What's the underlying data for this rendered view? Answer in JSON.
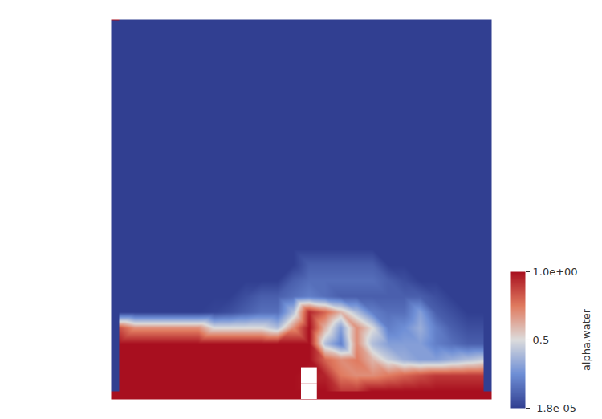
{
  "chart_data": {
    "type": "heatmap",
    "tick_labels": false,
    "cells": [
      [
        0,
        0,
        0,
        0,
        0,
        0,
        0,
        0,
        0,
        0,
        0,
        0,
        0,
        0,
        0,
        0,
        0,
        0,
        0,
        0,
        0,
        0,
        0,
        0
      ],
      [
        0,
        0,
        0,
        0,
        0,
        0,
        0,
        0,
        0,
        0,
        0,
        0,
        0,
        0,
        0,
        0,
        0,
        0,
        0,
        0,
        0,
        0,
        0,
        0
      ],
      [
        0,
        0,
        0,
        0,
        0,
        0,
        0,
        0,
        0,
        0,
        0,
        0,
        0,
        0,
        0,
        0,
        0,
        0,
        0,
        0,
        0,
        0,
        0,
        0
      ],
      [
        0,
        0,
        0,
        0,
        0,
        0,
        0,
        0,
        0,
        0,
        0,
        0,
        0,
        0,
        0,
        0,
        0,
        0,
        0,
        0,
        0,
        0,
        0,
        0
      ],
      [
        0,
        0,
        0,
        0,
        0,
        0,
        0,
        0,
        0,
        0,
        0,
        0,
        0,
        0,
        0,
        0,
        0,
        0,
        0,
        0,
        0,
        0,
        0,
        0
      ],
      [
        0,
        0,
        0,
        0,
        0,
        0,
        0,
        0,
        0,
        0,
        0,
        0,
        0,
        0,
        0,
        0,
        0,
        0,
        0,
        0,
        0,
        0,
        0,
        0
      ],
      [
        0,
        0,
        0,
        0,
        0,
        0,
        0,
        0,
        0,
        0,
        0,
        0,
        0,
        0,
        0,
        0,
        0,
        0,
        0,
        0,
        0,
        0,
        0,
        0
      ],
      [
        0,
        0,
        0,
        0,
        0,
        0,
        0,
        0,
        0,
        0,
        0,
        0,
        0,
        0,
        0,
        0,
        0,
        0,
        0,
        0,
        0,
        0,
        0,
        0
      ],
      [
        0,
        0,
        0,
        0,
        0,
        0,
        0,
        0,
        0,
        0,
        0,
        0,
        0,
        0,
        0,
        0,
        0,
        0,
        0,
        0,
        0,
        0,
        0,
        0
      ],
      [
        0,
        0,
        0,
        0,
        0,
        0,
        0,
        0,
        0,
        0,
        0,
        0,
        0,
        0,
        0,
        0,
        0,
        0,
        0,
        0,
        0,
        0,
        0,
        0
      ],
      [
        0,
        0,
        0,
        0,
        0,
        0,
        0,
        0,
        0,
        0,
        0,
        0,
        0,
        0,
        0,
        0,
        0,
        0,
        0,
        0,
        0,
        0,
        0,
        0
      ],
      [
        0,
        0,
        0,
        0,
        0,
        0,
        0,
        0,
        0,
        0,
        0,
        0,
        0,
        0,
        0,
        0,
        0,
        0,
        0,
        0,
        0,
        0,
        0,
        0
      ],
      [
        0,
        0,
        0,
        0,
        0,
        0,
        0,
        0,
        0,
        0,
        0,
        0,
        0,
        0,
        0,
        0,
        0,
        0,
        0,
        0,
        0,
        0,
        0,
        0
      ],
      [
        0,
        0,
        0,
        0,
        0,
        0,
        0,
        0,
        0,
        0,
        0,
        0,
        0,
        0,
        0,
        0,
        0,
        0,
        0,
        0,
        0,
        0,
        0,
        0
      ],
      [
        0,
        0,
        0,
        0,
        0,
        0,
        0,
        0,
        0,
        0,
        0,
        0,
        0,
        0,
        0,
        0,
        0,
        0,
        0,
        0,
        0,
        0,
        0,
        0
      ],
      [
        0,
        0,
        0,
        0,
        0,
        0,
        0,
        0,
        0,
        0,
        0,
        0,
        0.1,
        0.1,
        0.1,
        0.1,
        0.1,
        0,
        0,
        0,
        0,
        0,
        0,
        0
      ],
      [
        0,
        0,
        0,
        0,
        0,
        0,
        0,
        0,
        0,
        0,
        0,
        0.1,
        0.15,
        0.15,
        0.15,
        0.15,
        0.15,
        0.1,
        0.05,
        0,
        0,
        0,
        0,
        0
      ],
      [
        0,
        0,
        0,
        0,
        0,
        0,
        0,
        0,
        0.05,
        0.1,
        0.1,
        0.15,
        0.2,
        0.15,
        0.1,
        0.1,
        0.1,
        0.1,
        0.1,
        0.1,
        0.05,
        0,
        0,
        0
      ],
      [
        0,
        0,
        0,
        0,
        0,
        0,
        0.02,
        0.05,
        0.1,
        0.15,
        0.15,
        0.4,
        0.95,
        0.8,
        0.6,
        0.4,
        0.2,
        0.15,
        0.15,
        0.3,
        0.1,
        0.05,
        0,
        0
      ],
      [
        0.85,
        0.7,
        0.7,
        0.7,
        0.7,
        0.7,
        0.5,
        0.5,
        0.5,
        0.5,
        0.4,
        0.7,
        1,
        0.6,
        0.3,
        0.7,
        0.5,
        0.2,
        0.25,
        0.35,
        0.2,
        0.1,
        0.05,
        0.05
      ],
      [
        1,
        1,
        1,
        1,
        1,
        1,
        1,
        1,
        1,
        1,
        1,
        1,
        1,
        0.4,
        0.2,
        0.7,
        0.4,
        0.3,
        0.3,
        0.3,
        0.2,
        0.15,
        0.1,
        0.1
      ],
      [
        1,
        1,
        1,
        1,
        1,
        1,
        1,
        1,
        1,
        1,
        1,
        1,
        1,
        0.8,
        0.7,
        0.75,
        0.6,
        0.45,
        0.35,
        0.3,
        0.3,
        0.35,
        0.4,
        0.45
      ],
      [
        1,
        1,
        1,
        1,
        1,
        1,
        1,
        1,
        1,
        1,
        1,
        1,
        null,
        0.95,
        0.75,
        0.7,
        0.7,
        0.75,
        0.8,
        0.85,
        0.9,
        0.9,
        0.9,
        0.9
      ],
      [
        1,
        1,
        1,
        1,
        1,
        1,
        1,
        1,
        1,
        1,
        1,
        1,
        null,
        1,
        0.9,
        0.9,
        1,
        1,
        1,
        1,
        1,
        1,
        1,
        1
      ]
    ],
    "colorbar": {
      "label": "alpha.water",
      "range": [
        -1.8e-05,
        1.0
      ],
      "ticks": [
        {
          "value": 1.0,
          "label": "1.0e+00"
        },
        {
          "value": 0.5,
          "label": "0.5"
        },
        {
          "value": -1.8e-05,
          "label": "-1.8e-05"
        }
      ]
    }
  }
}
